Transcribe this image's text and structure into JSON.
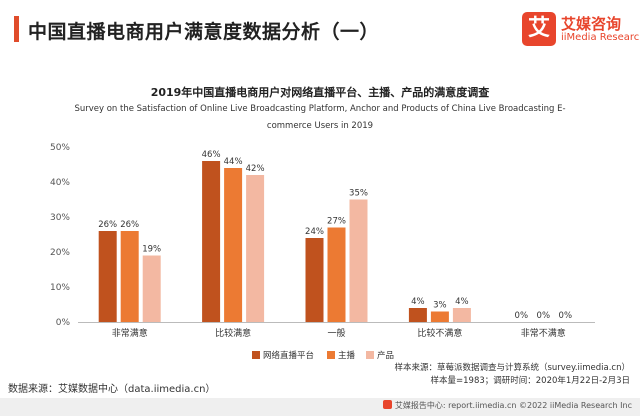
{
  "header": {
    "title": "中国直播电商用户满意度数据分析（一）",
    "logo_mark": "艾",
    "logo_cn": "艾媒咨询",
    "logo_en": "iiMedia Research"
  },
  "colors": {
    "accent": "#e04c2b",
    "series": [
      "#c0521e",
      "#ec7a33",
      "#f3b8a2"
    ]
  },
  "chart_data": {
    "type": "bar",
    "title": "2019年中国直播电商用户对网络直播平台、主播、产品的满意度调查",
    "subtitle": "Survey on the Satisfaction of Online Live Broadcasting Platform, Anchor and Products of China Live Broadcasting E-commerce Users in 2019",
    "categories": [
      "非常满意",
      "比较满意",
      "一般",
      "比较不满意",
      "非常不满意"
    ],
    "series": [
      {
        "name": "网络直播平台",
        "values": [
          26,
          46,
          24,
          4,
          0
        ]
      },
      {
        "name": "主播",
        "values": [
          26,
          44,
          27,
          3,
          0
        ]
      },
      {
        "name": "产品",
        "values": [
          19,
          42,
          35,
          4,
          0
        ]
      }
    ],
    "yticks": [
      "0%",
      "10%",
      "20%",
      "30%",
      "40%",
      "50%"
    ],
    "ylim": [
      0,
      50
    ],
    "value_suffix": "%",
    "grid": false,
    "legend_position": "bottom"
  },
  "footer": {
    "notes_line1": "样本来源：草莓派数据调查与计算系统（survey.iimedia.cn）",
    "notes_line2": "样本量=1983；调研时间：2020年1月22日-2月3日",
    "source": "数据来源：艾媒数据中心（data.iimedia.cn）",
    "bottom": "艾媒报告中心: report.iimedia.cn  ©2022  iiMedia Research Inc"
  }
}
